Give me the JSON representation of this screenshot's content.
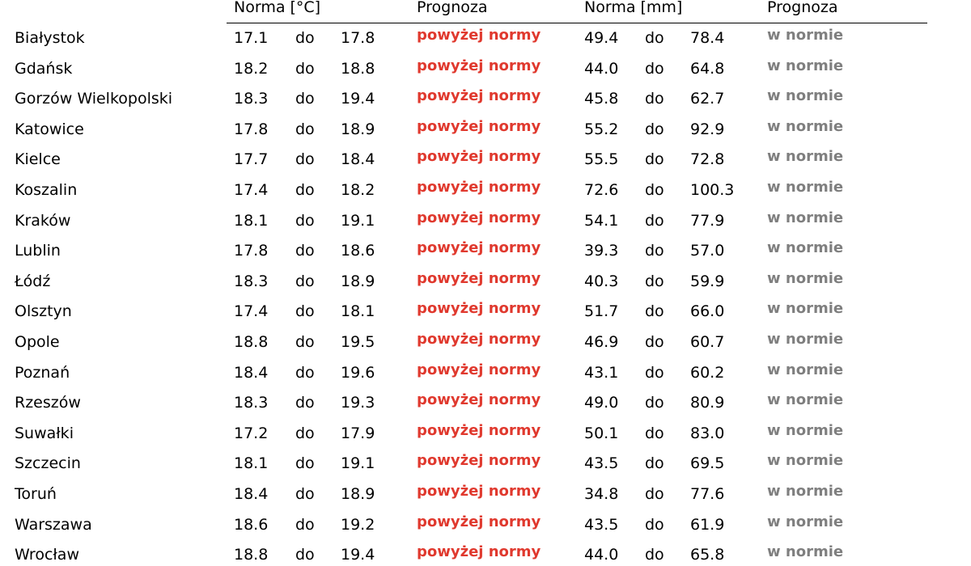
{
  "table": {
    "header": [
      "Norma [°C]",
      "Prognoza",
      "Norma [mm]",
      "Prognoza"
    ],
    "rows": [
      [
        "Białystok",
        "17.1",
        "do",
        "17.8",
        "powyżej normy",
        "49.4",
        "do",
        "78.4",
        "w normie"
      ],
      [
        "Gdańsk",
        "18.2",
        "do",
        "18.8",
        "powyżej normy",
        "44.0",
        "do",
        "64.8",
        "w normie"
      ],
      [
        "Gorzów Wielkopolski",
        "18.3",
        "do",
        "19.4",
        "powyżej normy",
        "45.8",
        "do",
        "62.7",
        "w normie"
      ],
      [
        "Katowice",
        "17.8",
        "do",
        "18.9",
        "powyżej normy",
        "55.2",
        "do",
        "92.9",
        "w normie"
      ],
      [
        "Kielce",
        "17.7",
        "do",
        "18.4",
        "powyżej normy",
        "55.5",
        "do",
        "72.8",
        "w normie"
      ],
      [
        "Koszalin",
        "17.4",
        "do",
        "18.2",
        "powyżej normy",
        "72.6",
        "do",
        "100.3",
        "w normie"
      ],
      [
        "Kraków",
        "18.1",
        "do",
        "19.1",
        "powyżej normy",
        "54.1",
        "do",
        "77.9",
        "w normie"
      ],
      [
        "Lublin",
        "17.8",
        "do",
        "18.6",
        "powyżej normy",
        "39.3",
        "do",
        "57.0",
        "w normie"
      ],
      [
        "Łódź",
        "18.3",
        "do",
        "18.9",
        "powyżej normy",
        "40.3",
        "do",
        "59.9",
        "w normie"
      ],
      [
        "Olsztyn",
        "17.4",
        "do",
        "18.1",
        "powyżej normy",
        "51.7",
        "do",
        "66.0",
        "w normie"
      ],
      [
        "Opole",
        "18.8",
        "do",
        "19.5",
        "powyżej normy",
        "46.9",
        "do",
        "60.7",
        "w normie"
      ],
      [
        "Poznań",
        "18.4",
        "do",
        "19.6",
        "powyżej normy",
        "43.1",
        "do",
        "60.2",
        "w normie"
      ],
      [
        "Rzeszów",
        "18.3",
        "do",
        "19.3",
        "powyżej normy",
        "49.0",
        "do",
        "80.9",
        "w normie"
      ],
      [
        "Suwałki",
        "17.2",
        "do",
        "17.9",
        "powyżej normy",
        "50.1",
        "do",
        "83.0",
        "w normie"
      ],
      [
        "Szczecin",
        "18.1",
        "do",
        "19.1",
        "powyżej normy",
        "43.5",
        "do",
        "69.5",
        "w normie"
      ],
      [
        "Toruń",
        "18.4",
        "do",
        "18.9",
        "powyżej normy",
        "34.8",
        "do",
        "77.6",
        "w normie"
      ],
      [
        "Warszawa",
        "18.6",
        "do",
        "19.2",
        "powyżej normy",
        "43.5",
        "do",
        "61.9",
        "w normie"
      ],
      [
        "Wrocław",
        "18.8",
        "do",
        "19.4",
        "powyżej normy",
        "44.0",
        "do",
        "65.8",
        "w normie"
      ]
    ]
  }
}
